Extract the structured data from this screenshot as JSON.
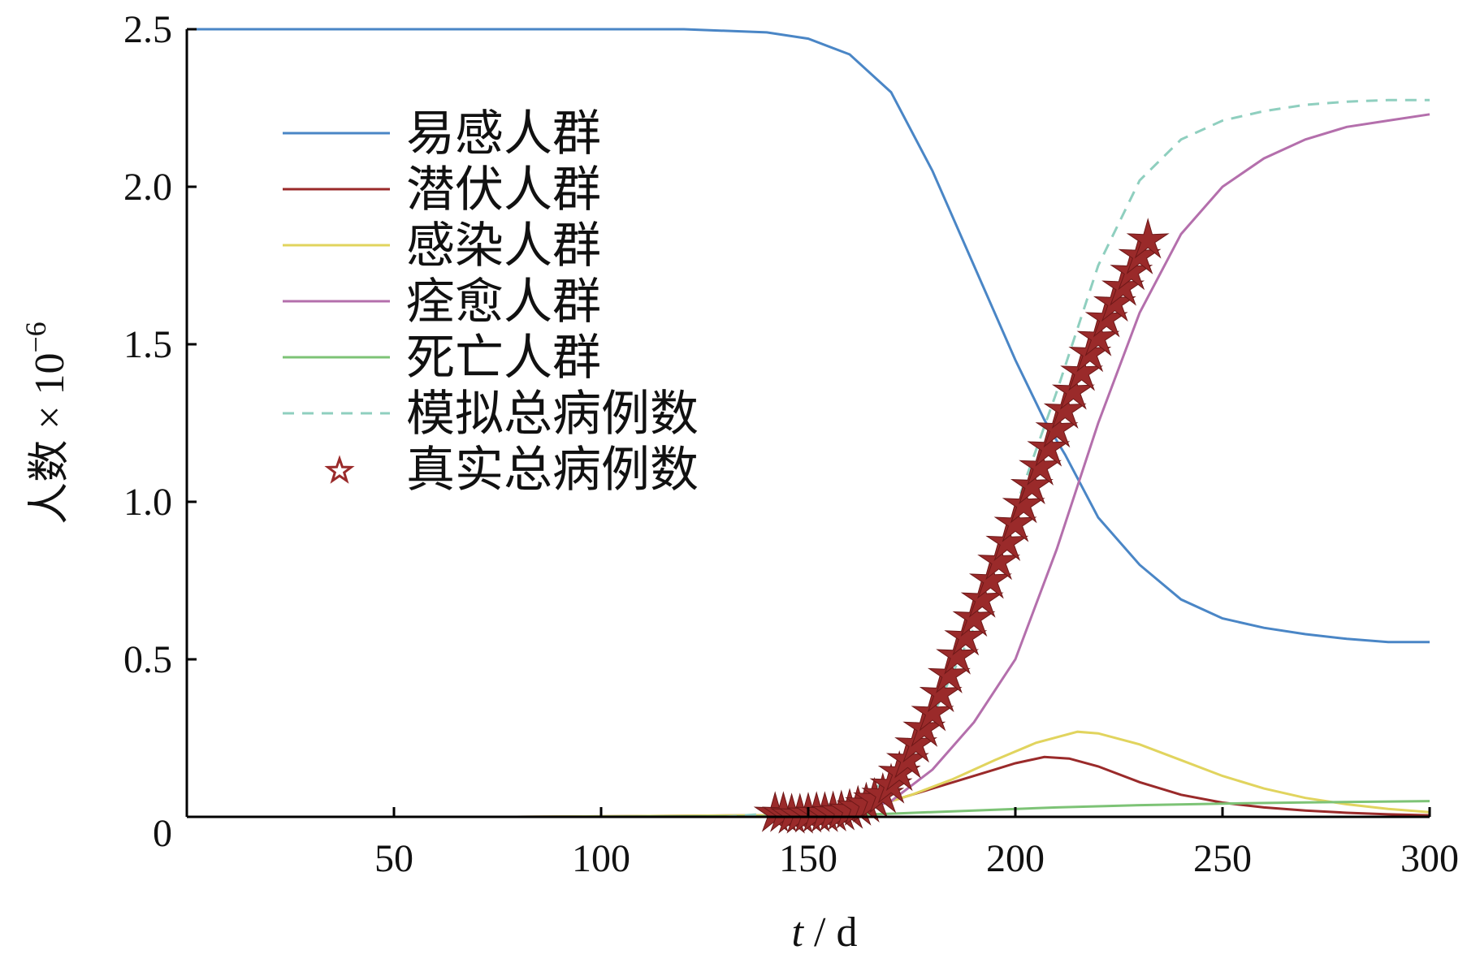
{
  "chart_data": {
    "type": "line",
    "xlim": [
      0,
      300
    ],
    "ylim": [
      0,
      2.5
    ],
    "x_ticks": [
      "50",
      "100",
      "150",
      "200",
      "250",
      "300"
    ],
    "y_ticks": [
      "0",
      "0.5",
      "1.0",
      "1.5",
      "2.0",
      "2.5"
    ],
    "xlabel": {
      "var": "t",
      "rest": " / d"
    },
    "ylabel": {
      "text": "人数 × 10",
      "sup": "−6"
    },
    "legend_position": "upper-left",
    "series": [
      {
        "name": "易感人群",
        "style": "line",
        "color": "#4a86c6",
        "points": [
          [
            0,
            2.5
          ],
          [
            120,
            2.5
          ],
          [
            140,
            2.49
          ],
          [
            150,
            2.47
          ],
          [
            160,
            2.42
          ],
          [
            170,
            2.3
          ],
          [
            180,
            2.05
          ],
          [
            190,
            1.75
          ],
          [
            200,
            1.45
          ],
          [
            207,
            1.26
          ],
          [
            212,
            1.15
          ],
          [
            220,
            0.95
          ],
          [
            230,
            0.8
          ],
          [
            240,
            0.69
          ],
          [
            250,
            0.63
          ],
          [
            260,
            0.6
          ],
          [
            270,
            0.58
          ],
          [
            280,
            0.565
          ],
          [
            290,
            0.555
          ],
          [
            300,
            0.555
          ]
        ]
      },
      {
        "name": "潜伏人群",
        "style": "line",
        "color": "#9a2a2a",
        "points": [
          [
            78,
            0
          ],
          [
            140,
            0.005
          ],
          [
            155,
            0.01
          ],
          [
            165,
            0.03
          ],
          [
            175,
            0.07
          ],
          [
            185,
            0.11
          ],
          [
            195,
            0.15
          ],
          [
            200,
            0.17
          ],
          [
            207,
            0.19
          ],
          [
            213,
            0.185
          ],
          [
            220,
            0.16
          ],
          [
            230,
            0.11
          ],
          [
            240,
            0.07
          ],
          [
            250,
            0.045
          ],
          [
            260,
            0.03
          ],
          [
            270,
            0.02
          ],
          [
            280,
            0.013
          ],
          [
            290,
            0.008
          ],
          [
            300,
            0.005
          ]
        ]
      },
      {
        "name": "感染人群",
        "style": "line",
        "color": "#e1d45e",
        "points": [
          [
            78,
            0
          ],
          [
            140,
            0.005
          ],
          [
            155,
            0.01
          ],
          [
            165,
            0.03
          ],
          [
            175,
            0.07
          ],
          [
            185,
            0.12
          ],
          [
            195,
            0.18
          ],
          [
            205,
            0.235
          ],
          [
            215,
            0.27
          ],
          [
            220,
            0.265
          ],
          [
            230,
            0.23
          ],
          [
            240,
            0.18
          ],
          [
            250,
            0.13
          ],
          [
            260,
            0.09
          ],
          [
            270,
            0.06
          ],
          [
            280,
            0.04
          ],
          [
            290,
            0.025
          ],
          [
            300,
            0.015
          ]
        ]
      },
      {
        "name": "痊愈人群",
        "style": "line",
        "color": "#b46fac",
        "points": [
          [
            140,
            0
          ],
          [
            160,
            0.01
          ],
          [
            170,
            0.05
          ],
          [
            180,
            0.15
          ],
          [
            190,
            0.3
          ],
          [
            200,
            0.5
          ],
          [
            210,
            0.85
          ],
          [
            220,
            1.25
          ],
          [
            230,
            1.6
          ],
          [
            240,
            1.85
          ],
          [
            250,
            2.0
          ],
          [
            260,
            2.09
          ],
          [
            270,
            2.15
          ],
          [
            280,
            2.19
          ],
          [
            290,
            2.21
          ],
          [
            300,
            2.23
          ]
        ]
      },
      {
        "name": "死亡人群",
        "style": "line",
        "color": "#7dc376",
        "points": [
          [
            78,
            0
          ],
          [
            150,
            0.002
          ],
          [
            170,
            0.01
          ],
          [
            190,
            0.02
          ],
          [
            210,
            0.03
          ],
          [
            230,
            0.037
          ],
          [
            250,
            0.042
          ],
          [
            270,
            0.046
          ],
          [
            300,
            0.05
          ]
        ]
      },
      {
        "name": "模拟总病例数",
        "style": "dashed",
        "color": "#8fcfbf",
        "points": [
          [
            130,
            0
          ],
          [
            140,
            0.01
          ],
          [
            150,
            0.025
          ],
          [
            160,
            0.05
          ],
          [
            170,
            0.12
          ],
          [
            180,
            0.32
          ],
          [
            190,
            0.6
          ],
          [
            200,
            0.98
          ],
          [
            210,
            1.35
          ],
          [
            220,
            1.75
          ],
          [
            230,
            2.02
          ],
          [
            240,
            2.15
          ],
          [
            250,
            2.21
          ],
          [
            260,
            2.24
          ],
          [
            270,
            2.26
          ],
          [
            280,
            2.27
          ],
          [
            290,
            2.275
          ],
          [
            300,
            2.275
          ]
        ]
      },
      {
        "name": "真实总病例数",
        "style": "star",
        "color": "#9a2a2a",
        "points": [
          [
            142,
            0.01
          ],
          [
            144,
            0.01
          ],
          [
            146,
            0.005
          ],
          [
            148,
            0.005
          ],
          [
            150,
            0.008
          ],
          [
            152,
            0.01
          ],
          [
            154,
            0.01
          ],
          [
            156,
            0.012
          ],
          [
            158,
            0.015
          ],
          [
            160,
            0.02
          ],
          [
            162,
            0.03
          ],
          [
            164,
            0.04
          ],
          [
            166,
            0.055
          ],
          [
            168,
            0.07
          ],
          [
            170,
            0.1
          ],
          [
            172,
            0.14
          ],
          [
            174,
            0.18
          ],
          [
            176,
            0.23
          ],
          [
            178,
            0.28
          ],
          [
            180,
            0.33
          ],
          [
            182,
            0.39
          ],
          [
            184,
            0.45
          ],
          [
            186,
            0.51
          ],
          [
            188,
            0.57
          ],
          [
            190,
            0.63
          ],
          [
            192,
            0.69
          ],
          [
            194,
            0.75
          ],
          [
            196,
            0.81
          ],
          [
            198,
            0.87
          ],
          [
            200,
            0.93
          ],
          [
            202,
            0.99
          ],
          [
            204,
            1.05
          ],
          [
            206,
            1.11
          ],
          [
            208,
            1.17
          ],
          [
            210,
            1.23
          ],
          [
            212,
            1.29
          ],
          [
            214,
            1.35
          ],
          [
            216,
            1.41
          ],
          [
            218,
            1.47
          ],
          [
            220,
            1.52
          ],
          [
            222,
            1.58
          ],
          [
            224,
            1.63
          ],
          [
            226,
            1.68
          ],
          [
            228,
            1.73
          ],
          [
            230,
            1.78
          ],
          [
            232,
            1.83
          ]
        ]
      }
    ]
  }
}
